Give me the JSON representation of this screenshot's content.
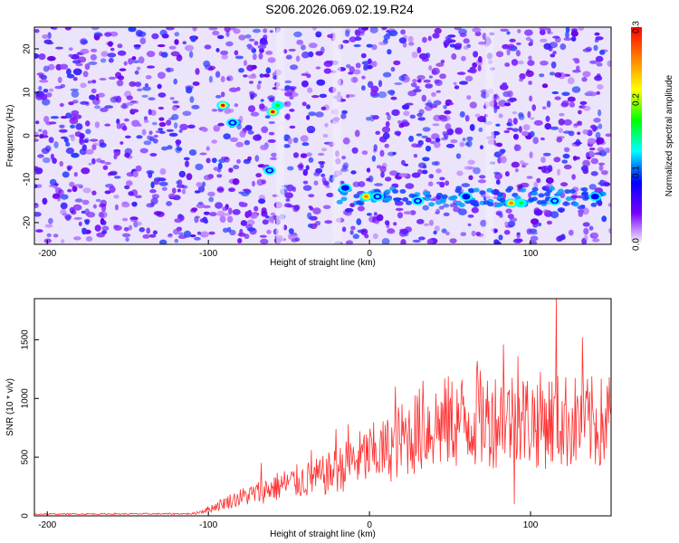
{
  "title": "S206.2026.069.02.19.R24",
  "chart_data": [
    {
      "type": "heatmap",
      "xlabel": "Height of straight line (km)",
      "ylabel": "Frequency (Hz)",
      "xlim": [
        -208,
        150
      ],
      "ylim": [
        -25,
        25
      ],
      "xticks": [
        -200,
        -100,
        0,
        100
      ],
      "yticks": [
        -20,
        -10,
        0,
        10,
        20
      ],
      "colorbar": {
        "label": "Normalized spectral amplitude",
        "range": [
          0.0,
          0.3
        ],
        "ticks": [
          0.0,
          0.1,
          0.2,
          0.3
        ],
        "colors": [
          "#ffffff",
          "#7a00ff",
          "#0000ff",
          "#00ffff",
          "#00ff00",
          "#ffff00",
          "#ff8000",
          "#ff0000"
        ]
      },
      "hotspots": [
        {
          "x": -91,
          "y": 7,
          "value": 0.3
        },
        {
          "x": -60,
          "y": 5.5,
          "value": 0.28
        },
        {
          "x": -57,
          "y": 7,
          "value": 0.15
        },
        {
          "x": -62,
          "y": -8,
          "value": 0.14
        },
        {
          "x": -85,
          "y": 3,
          "value": 0.11
        },
        {
          "x": -15,
          "y": -12,
          "value": 0.1
        },
        {
          "x": -2,
          "y": -14,
          "value": 0.27
        },
        {
          "x": 5,
          "y": -14,
          "value": 0.14
        },
        {
          "x": 30,
          "y": -15,
          "value": 0.12
        },
        {
          "x": 60,
          "y": -14,
          "value": 0.1
        },
        {
          "x": 88,
          "y": -15.5,
          "value": 0.27
        },
        {
          "x": 94,
          "y": -15.5,
          "value": 0.17
        },
        {
          "x": 115,
          "y": -15,
          "value": 0.12
        },
        {
          "x": 140,
          "y": -14,
          "value": 0.1
        }
      ]
    },
    {
      "type": "line",
      "xlabel": "Height of straight line (km)",
      "ylabel": "SNR (10 * v/v)",
      "xlim": [
        -208,
        150
      ],
      "ylim": [
        0,
        1850
      ],
      "xticks": [
        -200,
        -100,
        0,
        100
      ],
      "yticks": [
        0,
        500,
        1000,
        1500
      ],
      "series_color": "#ff3030",
      "envelope": {
        "x": [
          -208,
          -110,
          -100,
          -90,
          -80,
          -70,
          -60,
          -50,
          -40,
          -30,
          -20,
          -10,
          0,
          10,
          20,
          30,
          40,
          50,
          60,
          70,
          80,
          90,
          100,
          110,
          120,
          130,
          140,
          150
        ],
        "y": [
          15,
          18,
          60,
          120,
          170,
          210,
          260,
          300,
          330,
          360,
          420,
          500,
          560,
          600,
          700,
          780,
          830,
          860,
          880,
          890,
          900,
          900,
          880,
          880,
          870,
          860,
          850,
          850
        ]
      },
      "spikes": [
        {
          "x": -67,
          "y": 450
        },
        {
          "x": -36,
          "y": 560
        },
        {
          "x": -21,
          "y": 740
        },
        {
          "x": -13,
          "y": 780
        },
        {
          "x": 16,
          "y": 1100
        },
        {
          "x": 33,
          "y": 1150
        },
        {
          "x": 67,
          "y": 1320
        },
        {
          "x": 83,
          "y": 1460
        },
        {
          "x": 92,
          "y": 1360
        },
        {
          "x": 90,
          "y": 100
        },
        {
          "x": 116,
          "y": 1850
        },
        {
          "x": 132,
          "y": 1520
        },
        {
          "x": 149,
          "y": 1180
        }
      ]
    }
  ]
}
